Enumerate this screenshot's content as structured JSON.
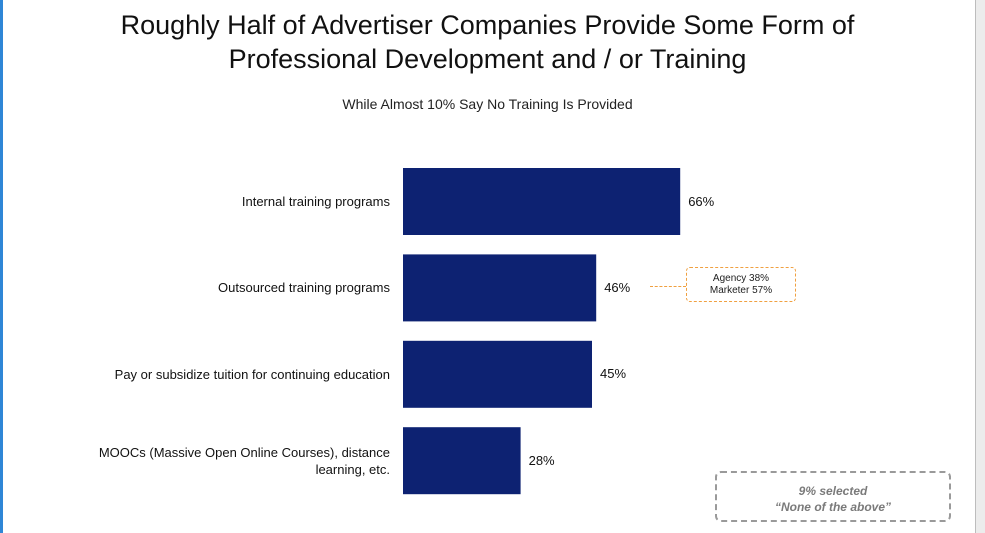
{
  "title_line1": "Roughly Half of Advertiser Companies Provide Some Form of",
  "title_line2": "Professional Development and / or Training",
  "subtitle": "While Almost 10% Say No Training Is Provided",
  "colors": {
    "bar": "#0d2272",
    "callout_border": "#f0a040",
    "note_border": "#9a9a9a",
    "note_text": "#7a7a7a"
  },
  "callout": {
    "line1": "Agency 38%",
    "line2": "Marketer 57%"
  },
  "note": {
    "line1": "9% selected",
    "line2": "“None of the above”"
  },
  "chart_data": {
    "type": "bar",
    "orientation": "horizontal",
    "categories": [
      "Internal training programs",
      "Outsourced training programs",
      "Pay or subsidize tuition for continuing education",
      "MOOCs (Massive Open Online Courses), distance learning, etc."
    ],
    "category_lines": [
      [
        "Internal training programs"
      ],
      [
        "Outsourced training programs"
      ],
      [
        "Pay or subsidize tuition for continuing education"
      ],
      [
        "MOOCs (Massive Open Online Courses), distance",
        "learning, etc."
      ]
    ],
    "values": [
      66,
      46,
      45,
      28
    ],
    "value_labels": [
      "66%",
      "46%",
      "45%",
      "28%"
    ],
    "xlim": [
      0,
      100
    ],
    "grid": false
  }
}
